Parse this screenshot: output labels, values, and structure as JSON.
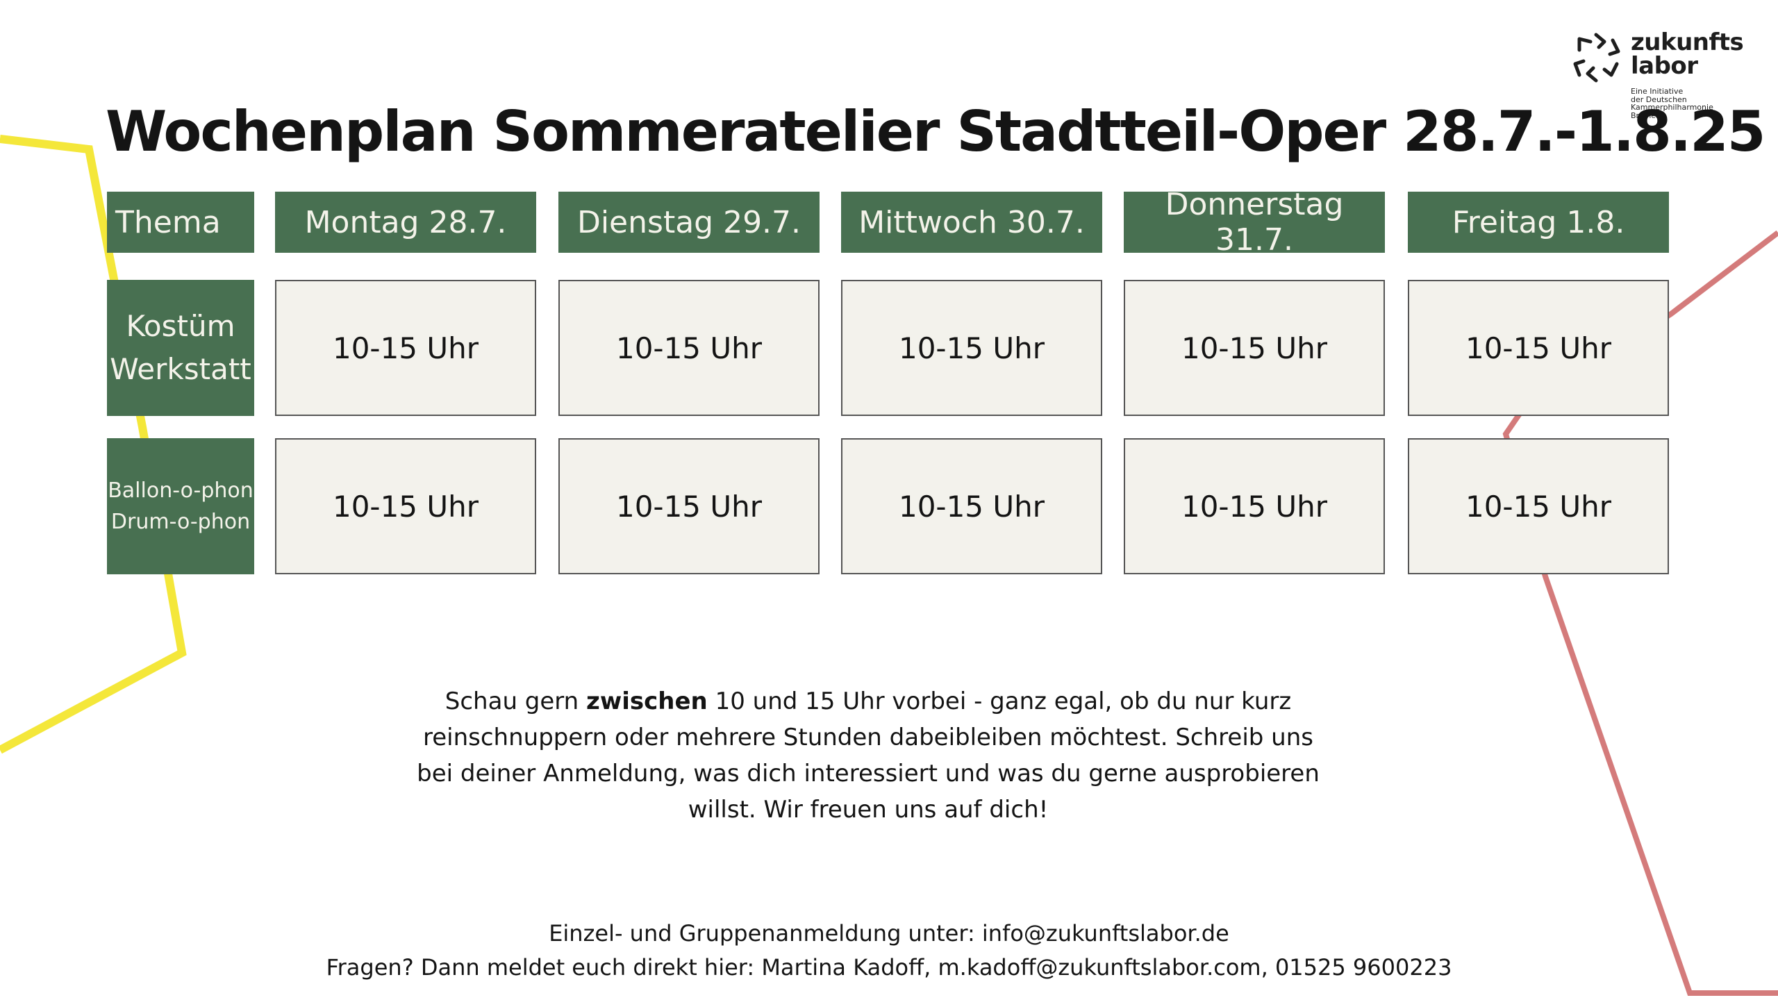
{
  "title": "Wochenplan Sommeratelier Stadtteil-Oper 28.7.-1.8.25",
  "logo": {
    "word_1": "zukunfts",
    "word_2": "labor",
    "sub_1": "Eine Initiative",
    "sub_2": "der Deutschen",
    "sub_3": "Kammerphilharmonie",
    "sub_4": "Bremen"
  },
  "colors": {
    "header_green": "#487051",
    "cell_bg": "#f3f2ec",
    "yellow_line": "#f4e73a",
    "red_line": "#d47b7b"
  },
  "schedule": {
    "theme_header": "Thema",
    "days": [
      "Montag 28.7.",
      "Dienstag 29.7.",
      "Mittwoch 30.7.",
      "Donnerstag 31.7.",
      "Freitag 1.8."
    ],
    "rows": [
      {
        "theme_line_1": "Kostüm",
        "theme_line_2": "Werkstatt",
        "slots": [
          "10-15 Uhr",
          "10-15 Uhr",
          "10-15 Uhr",
          "10-15 Uhr",
          "10-15 Uhr"
        ]
      },
      {
        "theme_line_1": "Ballon-o-phon",
        "theme_line_2": "Drum-o-phon",
        "slots": [
          "10-15 Uhr",
          "10-15 Uhr",
          "10-15 Uhr",
          "10-15 Uhr",
          "10-15 Uhr"
        ]
      }
    ]
  },
  "info": {
    "before": "Schau gern ",
    "bold": "zwischen",
    "after": " 10 und 15 Uhr vorbei - ganz egal, ob du nur kurz reinschnuppern oder mehrere Stunden dabeibleiben möchtest. Schreib uns bei deiner Anmeldung, was dich interessiert und was du gerne ausprobieren willst. Wir freuen uns auf dich!"
  },
  "footer": {
    "line_1": "Einzel- und Gruppenanmeldung unter: info@zukunftslabor.de",
    "line_2": "Fragen? Dann meldet euch direkt hier:  Martina Kadoff, m.kadoff@zukunftslabor.com, 01525 9600223"
  }
}
